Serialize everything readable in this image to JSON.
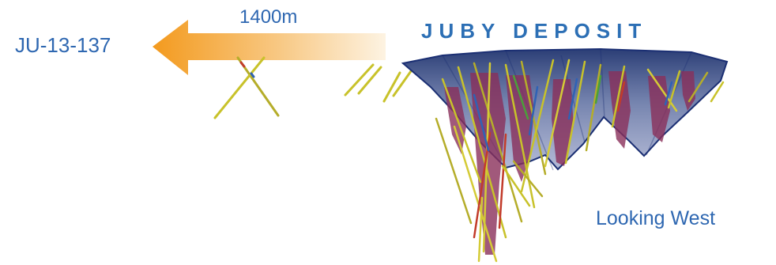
{
  "labels": {
    "hole_id": "JU-13-137",
    "distance": "1400m",
    "deposit_title": "JUBY DEPOSIT",
    "view_direction": "Looking West"
  },
  "colors": {
    "text": "#2e67b1",
    "title": "#2c6fb5",
    "arrow_start": "#f39a1e",
    "arrow_end": "#fdf3e2",
    "pit_shell": "#1b2f73",
    "mineralization": "#8a2f5a",
    "drill_trace": "#c8c22a"
  },
  "icons": {
    "direction_arrow": "left-arrow-icon"
  }
}
